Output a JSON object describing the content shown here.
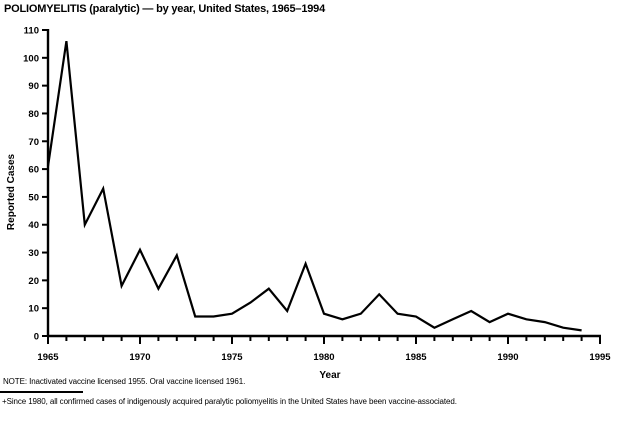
{
  "page": {
    "title": "POLIOMYELITIS (paralytic) — by year, United States, 1965–1994",
    "note": "NOTE: Inactivated vaccine licensed 1955. Oral vaccine licensed 1961.",
    "footnote_marker": "+",
    "footnote": "Since 1980, all confirmed cases of indigenously acquired paralytic poliomyelitis in the United States have been vaccine-associated."
  },
  "chart_data": {
    "type": "line",
    "title": "POLIOMYELITIS (paralytic) — by year, United States, 1965–1994",
    "xlabel": "Year",
    "ylabel": "Reported Cases",
    "x": [
      1965,
      1966,
      1967,
      1968,
      1969,
      1970,
      1971,
      1972,
      1973,
      1974,
      1975,
      1976,
      1977,
      1978,
      1979,
      1980,
      1981,
      1982,
      1983,
      1984,
      1985,
      1986,
      1987,
      1988,
      1989,
      1990,
      1991,
      1992,
      1993,
      1994
    ],
    "values": [
      61,
      106,
      40,
      53,
      18,
      31,
      17,
      29,
      7,
      7,
      8,
      12,
      17,
      9,
      26,
      8,
      6,
      8,
      15,
      8,
      7,
      3,
      6,
      9,
      5,
      8,
      6,
      5,
      3,
      2
    ],
    "xlim": [
      1965,
      1995
    ],
    "ylim": [
      0,
      110
    ],
    "y_tick_interval": 10,
    "x_major_tick_interval": 5,
    "x_minor_tick_interval": 1,
    "x_major_tick_labels": [
      "1965",
      "1970",
      "1975",
      "1980",
      "1985",
      "1990",
      "1995"
    ],
    "grid": false,
    "legend": "none",
    "line_color": "#000000",
    "background_color": "#ffffff",
    "text_color": "#000000"
  }
}
